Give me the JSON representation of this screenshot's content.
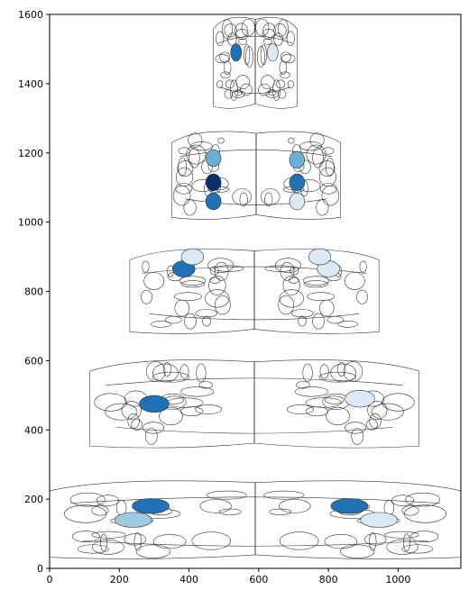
{
  "chart_data": {
    "type": "other",
    "title": "",
    "xlabel": "",
    "ylabel": "",
    "xlim": [
      0,
      1180
    ],
    "ylim": [
      0,
      1600
    ],
    "x_ticks": [
      "0",
      "200",
      "400",
      "600",
      "800",
      "1000"
    ],
    "y_ticks": [
      "0",
      "200",
      "400",
      "600",
      "800",
      "1000",
      "1200",
      "1400",
      "1600"
    ],
    "grid": false,
    "colors": {
      "light": "#dbe9f6",
      "lightmid": "#9ecae1",
      "mid": "#6baed6",
      "strong": "#2171b5",
      "dark": "#08306b",
      "outline": "#333333"
    },
    "sections": [
      {
        "name": "row-1",
        "x_range": [
          0,
          1180
        ],
        "y_range": [
          20,
          260
        ],
        "highlighted_regions": [
          {
            "x": 290,
            "y": 180,
            "shade": "strong"
          },
          {
            "x": 860,
            "y": 180,
            "shade": "strong"
          },
          {
            "x": 240,
            "y": 140,
            "shade": "lightmid"
          },
          {
            "x": 945,
            "y": 140,
            "shade": "light"
          }
        ]
      },
      {
        "name": "row-2",
        "x_range": [
          115,
          1060
        ],
        "y_range": [
          340,
          610
        ],
        "highlighted_regions": [
          {
            "x": 300,
            "y": 475,
            "shade": "strong"
          },
          {
            "x": 890,
            "y": 490,
            "shade": "light"
          }
        ]
      },
      {
        "name": "row-3",
        "x_range": [
          230,
          945
        ],
        "y_range": [
          670,
          930
        ],
        "highlighted_regions": [
          {
            "x": 385,
            "y": 865,
            "shade": "strong"
          },
          {
            "x": 800,
            "y": 865,
            "shade": "light"
          },
          {
            "x": 410,
            "y": 900,
            "shade": "light"
          },
          {
            "x": 775,
            "y": 900,
            "shade": "light"
          }
        ]
      },
      {
        "name": "row-4",
        "x_range": [
          350,
          835
        ],
        "y_range": [
          1000,
          1270
        ],
        "highlighted_regions": [
          {
            "x": 470,
            "y": 1115,
            "shade": "dark"
          },
          {
            "x": 710,
            "y": 1115,
            "shade": "strong"
          },
          {
            "x": 470,
            "y": 1185,
            "shade": "mid"
          },
          {
            "x": 710,
            "y": 1180,
            "shade": "mid"
          },
          {
            "x": 470,
            "y": 1060,
            "shade": "strong"
          },
          {
            "x": 710,
            "y": 1060,
            "shade": "light"
          }
        ]
      },
      {
        "name": "row-5",
        "x_range": [
          470,
          710
        ],
        "y_range": [
          1320,
          1600
        ],
        "highlighted_regions": [
          {
            "x": 535,
            "y": 1490,
            "shade": "strong"
          },
          {
            "x": 640,
            "y": 1490,
            "shade": "light"
          }
        ]
      }
    ]
  }
}
